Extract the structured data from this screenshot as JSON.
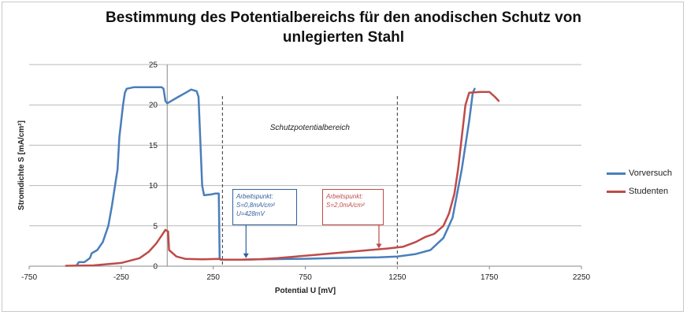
{
  "chart_data": {
    "type": "line",
    "title_line1": "Bestimmung des Potentialbereichs für den anodischen Schutz von",
    "title_line2": "unlegierten Stahl",
    "xlabel": "Potential U [mV]",
    "ylabel": "Stromdichte S [mA/cm²]",
    "xlim": [
      -750,
      2250
    ],
    "ylim": [
      0,
      25
    ],
    "xticks": [
      -750,
      -250,
      250,
      750,
      1250,
      1750,
      2250
    ],
    "yticks": [
      0,
      5,
      10,
      15,
      20,
      25
    ],
    "grid": "horizontal",
    "legend": "right",
    "series": [
      {
        "name": "Vorversuch",
        "color": "#4a7ebb",
        "points": [
          [
            -490,
            0.2
          ],
          [
            -480,
            0.5
          ],
          [
            -450,
            0.5
          ],
          [
            -420,
            1.0
          ],
          [
            -410,
            1.6
          ],
          [
            -380,
            2.0
          ],
          [
            -350,
            3.0
          ],
          [
            -320,
            5.0
          ],
          [
            -300,
            7.5
          ],
          [
            -280,
            10.5
          ],
          [
            -270,
            12.0
          ],
          [
            -260,
            16.0
          ],
          [
            -240,
            20.0
          ],
          [
            -230,
            21.5
          ],
          [
            -220,
            22.0
          ],
          [
            -180,
            22.2
          ],
          [
            -100,
            22.2
          ],
          [
            -30,
            22.2
          ],
          [
            -20,
            22.0
          ],
          [
            -10,
            20.5
          ],
          [
            0,
            20.2
          ],
          [
            30,
            20.6
          ],
          [
            60,
            21.0
          ],
          [
            100,
            21.5
          ],
          [
            130,
            21.9
          ],
          [
            160,
            21.7
          ],
          [
            170,
            21.0
          ],
          [
            190,
            10.0
          ],
          [
            200,
            8.8
          ],
          [
            240,
            8.9
          ],
          [
            260,
            9.0
          ],
          [
            280,
            9.0
          ],
          [
            285,
            1.0
          ],
          [
            290,
            0.8
          ],
          [
            400,
            0.8
          ],
          [
            500,
            0.85
          ],
          [
            700,
            0.9
          ],
          [
            900,
            1.0
          ],
          [
            1150,
            1.1
          ],
          [
            1250,
            1.2
          ],
          [
            1350,
            1.5
          ],
          [
            1430,
            2.0
          ],
          [
            1500,
            3.5
          ],
          [
            1550,
            6.0
          ],
          [
            1600,
            12.0
          ],
          [
            1640,
            18.0
          ],
          [
            1660,
            21.5
          ],
          [
            1670,
            22.0
          ]
        ]
      },
      {
        "name": "Studenten",
        "color": "#be4b48",
        "points": [
          [
            -550,
            0.05
          ],
          [
            -400,
            0.1
          ],
          [
            -250,
            0.4
          ],
          [
            -150,
            1.0
          ],
          [
            -100,
            1.8
          ],
          [
            -60,
            2.8
          ],
          [
            -30,
            3.8
          ],
          [
            -10,
            4.5
          ],
          [
            5,
            4.3
          ],
          [
            10,
            2.0
          ],
          [
            50,
            1.2
          ],
          [
            100,
            0.9
          ],
          [
            200,
            0.85
          ],
          [
            280,
            0.9
          ],
          [
            300,
            0.8
          ],
          [
            400,
            0.8
          ],
          [
            500,
            0.85
          ],
          [
            600,
            1.0
          ],
          [
            700,
            1.2
          ],
          [
            800,
            1.4
          ],
          [
            900,
            1.6
          ],
          [
            1000,
            1.8
          ],
          [
            1100,
            2.0
          ],
          [
            1200,
            2.2
          ],
          [
            1280,
            2.4
          ],
          [
            1350,
            3.0
          ],
          [
            1400,
            3.6
          ],
          [
            1450,
            4.0
          ],
          [
            1500,
            5.0
          ],
          [
            1530,
            6.5
          ],
          [
            1560,
            9.0
          ],
          [
            1580,
            12.0
          ],
          [
            1600,
            16.0
          ],
          [
            1620,
            20.0
          ],
          [
            1640,
            21.5
          ],
          [
            1700,
            21.6
          ],
          [
            1750,
            21.6
          ],
          [
            1780,
            21.0
          ],
          [
            1800,
            20.5
          ]
        ]
      }
    ],
    "region_label": "Schutzpotentialbereich",
    "region_bounds": [
      300,
      1250
    ],
    "annotations": [
      {
        "lines": [
          "Arbeitspunkt:",
          "S=0,8mA/cm²",
          "U=428mV"
        ],
        "color": "#2f5f9e",
        "target": [
          428,
          0.8
        ]
      },
      {
        "lines": [
          "Arbeitspunkt:",
          "S=2,0mA/cm²"
        ],
        "color": "#be4b48",
        "target": [
          1150,
          2.0
        ]
      }
    ]
  }
}
